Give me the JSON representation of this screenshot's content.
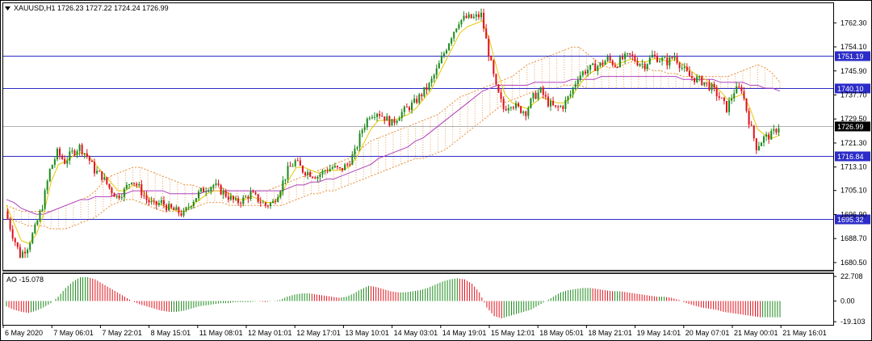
{
  "window": {
    "menu_icon": "triangle-down-icon",
    "title": "XAUUSD,H1  1726.23 1727.22 1724.24 1726.99"
  },
  "chart_data": {
    "type": "candlestick",
    "symbol": "XAUUSD",
    "timeframe": "H1",
    "ohlc_header": {
      "open": 1726.23,
      "high": 1727.22,
      "low": 1724.24,
      "close": 1726.99
    },
    "ylim": [
      1678,
      1769
    ],
    "y_ticks": [
      1762.3,
      1754.1,
      1745.9,
      1737.7,
      1729.5,
      1721.3,
      1713.1,
      1705.1,
      1696.9,
      1688.7,
      1680.5
    ],
    "x_ticks": [
      "6 May 2020",
      "7 May 06:01",
      "7 May 22:01",
      "8 May 15:01",
      "11 May 08:01",
      "12 May 01:01",
      "12 May 17:01",
      "13 May 10:01",
      "14 May 03:01",
      "14 May 19:01",
      "15 May 12:01",
      "18 May 05:01",
      "18 May 21:01",
      "19 May 14:01",
      "20 May 07:01",
      "21 May 00:01",
      "21 May 16:01"
    ],
    "horizontal_levels": [
      {
        "value": 1751.19,
        "label": "1751.19",
        "color": "#2c2cc8"
      },
      {
        "value": 1740.1,
        "label": "1740.10",
        "color": "#2c2cc8"
      },
      {
        "value": 1716.84,
        "label": "1716.84",
        "color": "#2c2cc8"
      },
      {
        "value": 1695.32,
        "label": "1695.32",
        "color": "#2c2cc8"
      }
    ],
    "current_price": {
      "value": 1726.99,
      "label": "1726.99"
    },
    "colors": {
      "up": "#1a8a1a",
      "down": "#e0101a",
      "level_line": "#3030c8",
      "fast_ma": "#e6c800",
      "slow_ma": "#b040c0",
      "cloud": "#e8903a"
    },
    "close_path": [
      1698,
      1690,
      1683,
      1686,
      1692,
      1700,
      1712,
      1718,
      1715,
      1718,
      1720,
      1717,
      1712,
      1710,
      1706,
      1703,
      1705,
      1709,
      1706,
      1702,
      1700,
      1701,
      1699,
      1698,
      1697,
      1701,
      1704,
      1706,
      1707,
      1705,
      1703,
      1701,
      1702,
      1704,
      1702,
      1700,
      1701,
      1706,
      1712,
      1715,
      1712,
      1711,
      1710,
      1712,
      1713,
      1712,
      1714,
      1718,
      1726,
      1731,
      1732,
      1730,
      1728,
      1731,
      1733,
      1735,
      1738,
      1741,
      1746,
      1752,
      1758,
      1763,
      1764,
      1764,
      1765,
      1752,
      1740,
      1733,
      1735,
      1733,
      1732,
      1737,
      1739,
      1735,
      1733,
      1734,
      1738,
      1744,
      1746,
      1747,
      1748,
      1750,
      1748,
      1750,
      1751,
      1749,
      1748,
      1751,
      1750,
      1749,
      1751,
      1747,
      1744,
      1743,
      1742,
      1740,
      1737,
      1733,
      1739,
      1740,
      1729,
      1720,
      1723,
      1724,
      1727
    ],
    "fast_ma": [
      1700,
      1694,
      1688,
      1687,
      1690,
      1697,
      1708,
      1714,
      1715,
      1717,
      1718,
      1717,
      1714,
      1711,
      1708,
      1705,
      1705,
      1707,
      1706,
      1703,
      1701,
      1700,
      1699,
      1698,
      1698,
      1700,
      1702,
      1704,
      1705,
      1705,
      1704,
      1702,
      1702,
      1703,
      1702,
      1701,
      1701,
      1704,
      1709,
      1713,
      1713,
      1712,
      1711,
      1712,
      1712,
      1712,
      1713,
      1716,
      1721,
      1726,
      1729,
      1729,
      1729,
      1730,
      1731,
      1733,
      1736,
      1739,
      1744,
      1749,
      1754,
      1759,
      1761,
      1762,
      1763,
      1756,
      1746,
      1738,
      1735,
      1734,
      1733,
      1735,
      1737,
      1736,
      1735,
      1735,
      1737,
      1741,
      1744,
      1746,
      1747,
      1749,
      1748,
      1749,
      1750,
      1749,
      1749,
      1750,
      1750,
      1749,
      1750,
      1748,
      1746,
      1744,
      1743,
      1741,
      1739,
      1736,
      1737,
      1738,
      1733,
      1726,
      1724,
      1723,
      1724
    ],
    "slow_ma": [
      1702,
      1701,
      1699,
      1698,
      1697,
      1697,
      1698,
      1699,
      1700,
      1701,
      1702,
      1702,
      1703,
      1703,
      1703,
      1704,
      1704,
      1705,
      1705,
      1705,
      1705,
      1705,
      1704,
      1704,
      1704,
      1704,
      1704,
      1705,
      1705,
      1705,
      1705,
      1705,
      1705,
      1705,
      1705,
      1705,
      1705,
      1705,
      1706,
      1707,
      1707,
      1708,
      1708,
      1709,
      1709,
      1710,
      1711,
      1712,
      1713,
      1714,
      1716,
      1717,
      1718,
      1719,
      1720,
      1722,
      1723,
      1725,
      1727,
      1729,
      1731,
      1733,
      1735,
      1737,
      1739,
      1740,
      1741,
      1741,
      1741,
      1741,
      1741,
      1742,
      1742,
      1742,
      1742,
      1742,
      1743,
      1743,
      1743,
      1743,
      1744,
      1744,
      1744,
      1744,
      1744,
      1744,
      1744,
      1744,
      1744,
      1744,
      1744,
      1743,
      1743,
      1743,
      1743,
      1743,
      1742,
      1742,
      1742,
      1742,
      1741,
      1741,
      1740,
      1740,
      1739
    ],
    "cloud_upper": [
      1700,
      1699,
      1698,
      1698,
      1698,
      1698,
      1698,
      1699,
      1700,
      1701,
      1702,
      1703,
      1705,
      1708,
      1710,
      1711,
      1712,
      1713,
      1713,
      1712,
      1711,
      1710,
      1709,
      1708,
      1707,
      1707,
      1706,
      1706,
      1706,
      1706,
      1705,
      1705,
      1705,
      1705,
      1705,
      1705,
      1706,
      1707,
      1708,
      1709,
      1710,
      1711,
      1712,
      1713,
      1714,
      1715,
      1716,
      1718,
      1720,
      1722,
      1723,
      1724,
      1725,
      1726,
      1727,
      1728,
      1729,
      1730,
      1731,
      1733,
      1735,
      1737,
      1738,
      1739,
      1740,
      1741,
      1742,
      1743,
      1744,
      1746,
      1748,
      1749,
      1750,
      1751,
      1752,
      1753,
      1754,
      1754,
      1752,
      1750,
      1748,
      1747,
      1747,
      1748,
      1749,
      1748,
      1747,
      1746,
      1746,
      1745,
      1745,
      1744,
      1744,
      1744,
      1744,
      1744,
      1744,
      1744,
      1745,
      1746,
      1747,
      1748,
      1747,
      1745,
      1742
    ],
    "cloud_lower": [
      1696,
      1695,
      1694,
      1693,
      1693,
      1693,
      1692,
      1692,
      1692,
      1693,
      1694,
      1695,
      1696,
      1698,
      1700,
      1701,
      1702,
      1702,
      1701,
      1700,
      1699,
      1698,
      1698,
      1698,
      1698,
      1699,
      1700,
      1701,
      1701,
      1701,
      1700,
      1700,
      1700,
      1700,
      1700,
      1700,
      1700,
      1700,
      1701,
      1702,
      1703,
      1704,
      1704,
      1705,
      1705,
      1706,
      1707,
      1708,
      1709,
      1710,
      1711,
      1712,
      1713,
      1714,
      1715,
      1716,
      1716,
      1717,
      1718,
      1719,
      1721,
      1723,
      1725,
      1727,
      1729,
      1731,
      1733,
      1735,
      1736,
      1737,
      1738,
      1739,
      1740,
      1740,
      1740,
      1741,
      1741,
      1741,
      1740,
      1740,
      1740,
      1740,
      1740,
      1740,
      1740,
      1740,
      1740,
      1740,
      1740,
      1740,
      1740,
      1740,
      1740,
      1740,
      1740,
      1740,
      1740,
      1740,
      1740,
      1740,
      1740,
      1740,
      1740,
      1740,
      1740
    ],
    "ao": {
      "label": "AO -15.078",
      "ylim": [
        -22,
        25
      ],
      "y_ticks": [
        {
          "value": 22.708,
          "label": "22.708"
        },
        {
          "value": 0.0,
          "label": "0.00"
        },
        {
          "value": -19.103,
          "label": "-19.103"
        }
      ],
      "values": [
        -5,
        -8,
        -10,
        -11,
        -9,
        -6,
        -2,
        4,
        12,
        18,
        22,
        22,
        20,
        16,
        12,
        8,
        4,
        0,
        -3,
        -5,
        -7,
        -9,
        -10,
        -10,
        -9,
        -7,
        -5,
        -4,
        -3,
        -2,
        -2,
        -1,
        -1,
        -1,
        0,
        -1,
        0,
        1,
        4,
        6,
        7,
        7,
        6,
        5,
        4,
        3,
        4,
        7,
        11,
        14,
        13,
        11,
        9,
        8,
        8,
        9,
        10,
        12,
        15,
        18,
        20,
        21,
        20,
        16,
        8,
        -6,
        -14,
        -16,
        -14,
        -12,
        -10,
        -8,
        -4,
        0,
        4,
        8,
        10,
        11,
        12,
        12,
        11,
        10,
        9,
        9,
        8,
        7,
        6,
        5,
        4,
        4,
        3,
        1,
        -2,
        -4,
        -6,
        -7,
        -8,
        -10,
        -11,
        -12,
        -13,
        -14,
        -15,
        -15,
        -15
      ]
    }
  }
}
